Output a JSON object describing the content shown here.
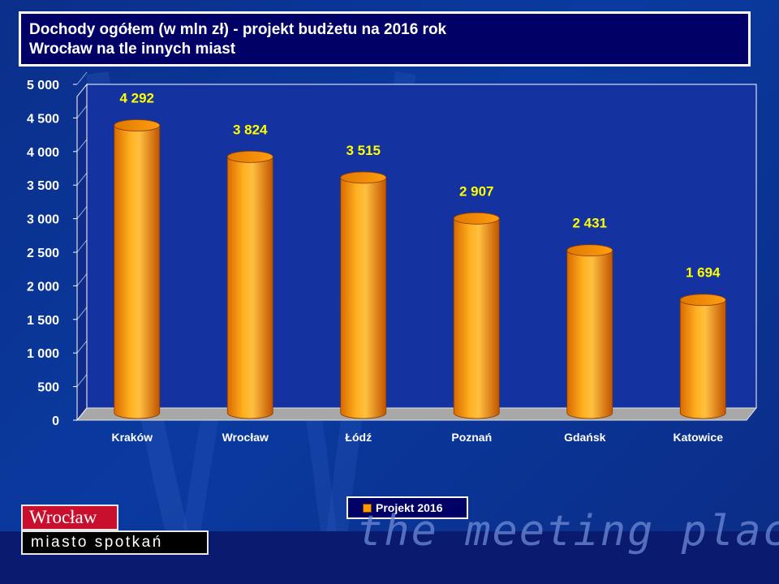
{
  "title": {
    "line1": "Dochody ogółem (w mln zł) - projekt budżetu na 2016 rok",
    "line2": "Wrocław na tle innych miast"
  },
  "chart_data": {
    "type": "bar",
    "categories": [
      "Kraków",
      "Wrocław",
      "Łódź",
      "Poznań",
      "Gdańsk",
      "Katowice"
    ],
    "series": [
      {
        "name": "Projekt 2016",
        "values": [
          4292,
          3824,
          3515,
          2907,
          2431,
          1694
        ]
      }
    ],
    "value_labels": [
      "4 292",
      "3 824",
      "3 515",
      "2 907",
      "2 431",
      "1 694"
    ],
    "ylim": [
      0,
      5000
    ],
    "yticks": [
      "0",
      "500",
      "1 000",
      "1 500",
      "2 000",
      "2 500",
      "3 000",
      "3 500",
      "4 000",
      "4 500",
      "5 000"
    ],
    "grid": false,
    "legend_position": "bottom"
  },
  "logo": {
    "name": "Wrocław",
    "tagline": "miasto spotkań"
  },
  "slogan": "the meeting place",
  "colors": {
    "bar": "#ff9a00",
    "label": "#ffff00",
    "plot_bg": "#1432a0",
    "title_bg": "#000066"
  }
}
